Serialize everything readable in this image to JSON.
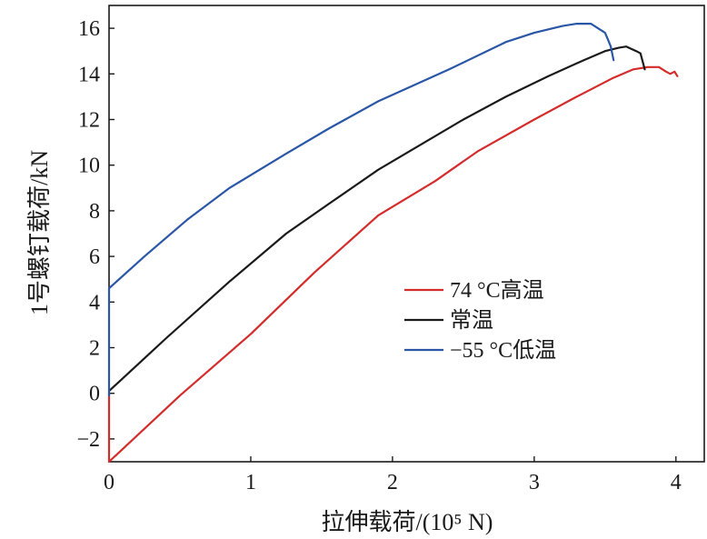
{
  "chart_data": {
    "type": "line",
    "title": "",
    "xlabel": "拉伸载荷/(10⁵ N)",
    "ylabel": "1号螺钉载荷/kN",
    "xlim": [
      0,
      4.2
    ],
    "ylim": [
      -3,
      17
    ],
    "xticks": [
      0,
      1,
      2,
      3,
      4
    ],
    "yticks": [
      -2,
      0,
      2,
      4,
      6,
      8,
      10,
      12,
      14,
      16
    ],
    "xtick_labels": [
      "0",
      "1",
      "2",
      "3",
      "4"
    ],
    "ytick_labels": [
      "−2",
      "0",
      "2",
      "4",
      "6",
      "8",
      "10",
      "12",
      "14",
      "16"
    ],
    "grid": false,
    "legend_position": "center-right",
    "series": [
      {
        "name": "74 °C高温",
        "color": "#d42b2b",
        "points": [
          [
            0,
            0
          ],
          [
            0,
            -3
          ],
          [
            0.5,
            -0.1
          ],
          [
            1.0,
            2.6
          ],
          [
            1.45,
            5.3
          ],
          [
            1.9,
            7.8
          ],
          [
            2.3,
            9.3
          ],
          [
            2.6,
            10.6
          ],
          [
            3.0,
            12.0
          ],
          [
            3.3,
            13.0
          ],
          [
            3.55,
            13.8
          ],
          [
            3.7,
            14.2
          ],
          [
            3.8,
            14.3
          ],
          [
            3.88,
            14.3
          ],
          [
            3.93,
            14.1
          ],
          [
            3.96,
            14.0
          ],
          [
            3.99,
            14.1
          ],
          [
            4.01,
            13.9
          ]
        ]
      },
      {
        "name": "常温",
        "color": "#1a1a1a",
        "points": [
          [
            0,
            0.1
          ],
          [
            0.4,
            2.4
          ],
          [
            0.85,
            4.9
          ],
          [
            1.25,
            7.0
          ],
          [
            1.55,
            8.3
          ],
          [
            1.9,
            9.8
          ],
          [
            2.2,
            10.9
          ],
          [
            2.5,
            12.0
          ],
          [
            2.8,
            13.0
          ],
          [
            3.1,
            13.9
          ],
          [
            3.35,
            14.6
          ],
          [
            3.5,
            15.0
          ],
          [
            3.6,
            15.15
          ],
          [
            3.65,
            15.2
          ],
          [
            3.72,
            15.0
          ],
          [
            3.75,
            14.9
          ],
          [
            3.78,
            14.2
          ]
        ]
      },
      {
        "name": "−55 °C低温",
        "color": "#2a56a6",
        "points": [
          [
            0,
            -0.1
          ],
          [
            0,
            4.6
          ],
          [
            0.25,
            6.0
          ],
          [
            0.55,
            7.6
          ],
          [
            0.85,
            9.0
          ],
          [
            1.25,
            10.5
          ],
          [
            1.55,
            11.6
          ],
          [
            1.9,
            12.8
          ],
          [
            2.4,
            14.2
          ],
          [
            2.8,
            15.4
          ],
          [
            3.0,
            15.8
          ],
          [
            3.2,
            16.1
          ],
          [
            3.3,
            16.2
          ],
          [
            3.4,
            16.2
          ],
          [
            3.45,
            16.0
          ],
          [
            3.5,
            15.8
          ],
          [
            3.52,
            15.5
          ],
          [
            3.54,
            15.2
          ],
          [
            3.56,
            14.6
          ]
        ]
      }
    ]
  }
}
